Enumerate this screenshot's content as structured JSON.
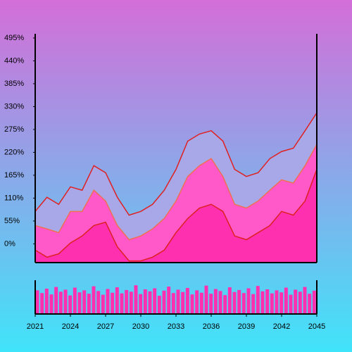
{
  "chart_data": {
    "type": "area",
    "x": [
      2021,
      2022,
      2023,
      2024,
      2025,
      2026,
      2027,
      2028,
      2029,
      2030,
      2031,
      2032,
      2033,
      2034,
      2035,
      2036,
      2037,
      2038,
      2039,
      2040,
      2041,
      2042,
      2043,
      2044,
      2045
    ],
    "series": [
      {
        "color": "#e02020",
        "fill": "#a8a8e8",
        "values": [
          78,
          112,
          95,
          137,
          129,
          188,
          171,
          112,
          69,
          78,
          95,
          129,
          179,
          247,
          264,
          272,
          247,
          179,
          162,
          171,
          205,
          222,
          230,
          272,
          315
        ]
      },
      {
        "color": "#f07050",
        "fill": "#ff58c8",
        "values": [
          44,
          36,
          27,
          78,
          78,
          129,
          103,
          44,
          10,
          19,
          36,
          61,
          103,
          162,
          188,
          205,
          162,
          95,
          86,
          103,
          129,
          154,
          146,
          188,
          239
        ]
      },
      {
        "color": "#e02020",
        "fill": "#ff30b0",
        "values": [
          -15,
          -32,
          -24,
          2,
          19,
          44,
          52,
          -7,
          -41,
          -41,
          -32,
          -15,
          27,
          61,
          86,
          95,
          78,
          19,
          10,
          27,
          44,
          78,
          69,
          103,
          179
        ]
      }
    ],
    "xlim": [
      2021,
      2045
    ],
    "xticks": [
      2021,
      2024,
      2027,
      2030,
      2033,
      2036,
      2039,
      2042,
      2045
    ],
    "ylim": [
      -45,
      505
    ],
    "yticks": [
      {
        "value": 0,
        "label": "0%"
      },
      {
        "value": 55,
        "label": "55%"
      },
      {
        "value": 110,
        "label": "110%"
      },
      {
        "value": 165,
        "label": "165%"
      },
      {
        "value": 220,
        "label": "220%"
      },
      {
        "value": 275,
        "label": "275%"
      },
      {
        "value": 330,
        "label": "330%"
      },
      {
        "value": 385,
        "label": "385%"
      },
      {
        "value": 440,
        "label": "440%"
      },
      {
        "value": 495,
        "label": "495%"
      }
    ],
    "navigator": {
      "color": "#ff30b0",
      "ylim": [
        0,
        100
      ],
      "values": [
        70,
        62,
        75,
        58,
        80,
        66,
        72,
        55,
        78,
        64,
        70,
        60,
        82,
        68,
        57,
        74,
        63,
        79,
        61,
        71,
        66,
        85,
        59,
        73,
        67,
        76,
        54,
        69,
        81,
        62,
        72,
        65,
        77,
        58,
        70,
        63,
        84,
        60,
        74,
        68,
        56,
        79,
        65,
        71,
        62,
        76,
        59,
        83,
        67,
        73,
        61,
        70,
        64,
        78,
        57,
        72,
        66,
        80,
        60,
        69
      ]
    }
  }
}
